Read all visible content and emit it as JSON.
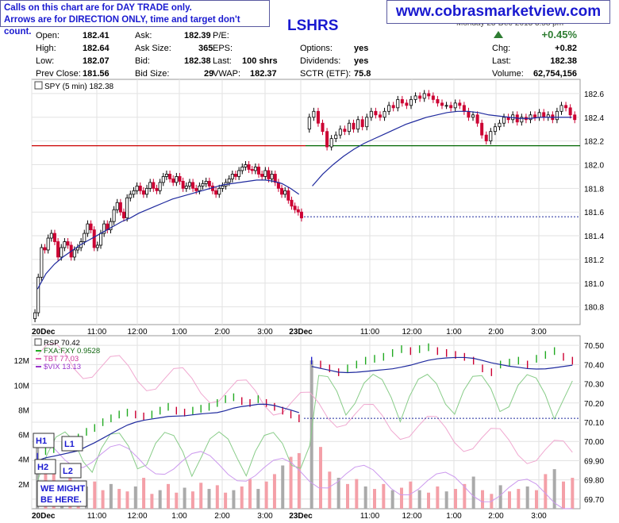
{
  "annotation_box": {
    "line1": "Calls on this chart are for DAY TRADE only.",
    "line2": "Arrows are for DIRECTION ONLY, time and target don't count."
  },
  "website": "www.cobrasmarketview.com",
  "date_line": "Monday 23-Dec-2013 3:58 pm",
  "quote": {
    "symbol": "LSHRS",
    "open_label": "Open:",
    "open": "182.41",
    "high_label": "High:",
    "high": "182.64",
    "low_label": "Low:",
    "low": "182.07",
    "prev_close_label": "Prev Close:",
    "prev_close": "181.56",
    "ask_label": "Ask:",
    "ask": "182.39",
    "ask_size_label": "Ask Size:",
    "ask_size": "365",
    "bid_label": "Bid:",
    "bid": "182.38",
    "bid_size_label": "Bid Size:",
    "bid_size": "29",
    "pe_label": "P/E:",
    "pe": "",
    "eps_label": "EPS:",
    "eps": "",
    "last_label": "Last:",
    "last_mid": "100 shrs",
    "vwap_label": "VWAP:",
    "vwap": "182.37",
    "options_label": "Options:",
    "options": "yes",
    "dividends_label": "Dividends:",
    "dividends": "yes",
    "sctr_label": "SCTR (ETF):",
    "sctr": "75.8",
    "change_pct": "+0.45%",
    "chg_label": "Chg:",
    "chg": "+0.82",
    "last_right": "182.38",
    "volume_label": "Volume:",
    "volume": "62,754,156"
  },
  "colors": {
    "up": "#000000",
    "down": "#cc0033",
    "ma": "#1f2a9e",
    "hline_red": "#cc0000",
    "hline_green": "#006600",
    "rsp_up": "#22aa22",
    "rsp_down": "#cc0033",
    "rsp_flat": "#2222cc",
    "fxa": "#88cc88",
    "tbt": "#f0a8d0",
    "vix": "#cc99ee",
    "vol_down": "#f4a0a8",
    "vol_up": "#aaaaaa",
    "note_text": "#1a1ad0",
    "arrow_green": "#2e7d32"
  },
  "chart_data": [
    {
      "type": "candlestick",
      "title": "SPY (5 min) 182.38",
      "ylim": [
        180.65,
        182.72
      ],
      "y_ticks": [
        "180.8",
        "181.0",
        "181.2",
        "181.4",
        "181.6",
        "181.8",
        "182.0",
        "182.2",
        "182.4",
        "182.6"
      ],
      "x_ticks": [
        "20Dec",
        "11:00",
        "12:00",
        "1:00",
        "2:00",
        "3:00",
        "23Dec",
        "11:00",
        "12:00",
        "1:00",
        "2:00",
        "3:00"
      ],
      "day1_close": [
        180.75,
        181.05,
        181.3,
        181.28,
        181.38,
        181.42,
        181.35,
        181.22,
        181.3,
        181.35,
        181.32,
        181.22,
        181.28,
        181.3,
        181.35,
        181.42,
        181.5,
        181.45,
        181.3,
        181.32,
        181.42,
        181.5,
        181.45,
        181.52,
        181.62,
        181.68,
        181.6,
        181.55,
        181.72,
        181.75,
        181.78,
        181.82,
        181.78,
        181.75,
        181.8,
        181.85,
        181.8,
        181.78,
        181.85,
        181.9,
        181.92,
        181.88,
        181.85,
        181.9,
        181.86,
        181.8,
        181.82,
        181.85,
        181.8,
        181.78,
        181.82,
        181.84,
        181.86,
        181.82,
        181.78,
        181.75,
        181.8,
        181.82,
        181.85,
        181.88,
        181.92,
        181.9,
        181.95,
        181.98,
        182.0,
        181.96,
        181.95,
        181.98,
        181.92,
        181.9,
        181.95,
        181.88,
        181.92,
        181.85,
        181.8,
        181.75,
        181.78,
        181.7,
        181.65,
        181.62,
        181.6,
        181.55
      ],
      "day2_close": [
        182.4,
        182.45,
        182.35,
        182.28,
        182.15,
        182.22,
        182.25,
        182.3,
        182.28,
        182.35,
        182.3,
        182.38,
        182.32,
        182.4,
        182.45,
        182.42,
        182.4,
        182.45,
        182.5,
        182.48,
        182.55,
        182.52,
        182.5,
        182.55,
        182.58,
        182.56,
        182.6,
        182.58,
        182.55,
        182.52,
        182.5,
        182.5,
        182.48,
        182.52,
        182.5,
        182.45,
        182.4,
        182.42,
        182.35,
        182.25,
        182.2,
        182.28,
        182.32,
        182.35,
        182.4,
        182.38,
        182.42,
        182.36,
        182.4,
        182.38,
        182.42,
        182.4,
        182.44,
        182.4,
        182.42,
        182.38,
        182.45,
        182.5,
        182.48,
        182.42,
        182.38
      ],
      "ma_day1": [
        180.95,
        181.08,
        181.16,
        181.22,
        181.27,
        181.32,
        181.36,
        181.4,
        181.44,
        181.48,
        181.52,
        181.55,
        181.59,
        181.62,
        181.65,
        181.68,
        181.71,
        181.73,
        181.75,
        181.77,
        181.79,
        181.81,
        181.83,
        181.84,
        181.85,
        181.86,
        181.87,
        181.87,
        181.86,
        181.84,
        181.8,
        181.75
      ],
      "ma_day2": [
        181.82,
        181.92,
        182.0,
        182.07,
        182.13,
        182.18,
        182.22,
        182.26,
        182.3,
        182.34,
        182.37,
        182.4,
        182.42,
        182.44,
        182.45,
        182.45,
        182.44,
        182.42,
        182.41,
        182.4,
        182.39,
        182.39,
        182.4,
        182.4,
        182.4,
        182.4
      ],
      "prev_close_line": 181.56,
      "red_line": 182.16,
      "green_line": 182.16
    },
    {
      "type": "line+volume",
      "rsp_label": "RSP  70.42",
      "fxa_label": "FXA:FXY  0.9528",
      "tbt_label": "TBT  77.03",
      "vix_label": "$VIX  13.13",
      "ylim": [
        69.65,
        70.55
      ],
      "y_ticks": [
        "69.70",
        "69.80",
        "69.90",
        "70.00",
        "70.10",
        "70.20",
        "70.30",
        "70.40",
        "70.50"
      ],
      "vol_ticks": [
        "2M",
        "4M",
        "6M",
        "8M",
        "10M",
        "12M"
      ],
      "vol_ylim": [
        0,
        14
      ],
      "x_ticks": [
        "20Dec",
        "11:00",
        "12:00",
        "1:00",
        "2:00",
        "3:00",
        "23Dec",
        "11:00",
        "12:00",
        "1:00",
        "2:00",
        "3:00"
      ],
      "rsp_day1": [
        69.92,
        69.95,
        69.96,
        69.98,
        70.0,
        70.02,
        70.05,
        70.07,
        70.1,
        70.12,
        70.14,
        70.15,
        70.14,
        70.13,
        70.14,
        70.16,
        70.18,
        70.16,
        70.15,
        70.16,
        70.17,
        70.18,
        70.2,
        70.22,
        70.23,
        70.21,
        70.2,
        70.22,
        70.2,
        70.18,
        70.16,
        70.14,
        70.12
      ],
      "rsp_day2": [
        70.42,
        70.4,
        70.38,
        70.36,
        70.38,
        70.4,
        70.42,
        70.43,
        70.44,
        70.46,
        70.48,
        70.47,
        70.48,
        70.49,
        70.47,
        70.46,
        70.45,
        70.44,
        70.42,
        70.38,
        70.36,
        70.4,
        70.41,
        70.42,
        70.4,
        70.43,
        70.45,
        70.47,
        70.44,
        70.42
      ],
      "prev_close_line": 70.12,
      "volume_day1": [
        6,
        4,
        3,
        2,
        2.5,
        2,
        1.8,
        2.2,
        1.5,
        2,
        1.6,
        1.4,
        1.8,
        2.5,
        1.2,
        1.5,
        2,
        1.3,
        1.7,
        1.4,
        2.1,
        1.6,
        1.9,
        1.3,
        1.5,
        1.8,
        2.4,
        1.6,
        2.2,
        2.8,
        3.5,
        4.2,
        4.5
      ],
      "volume_day2": [
        12,
        5,
        3,
        2.5,
        2,
        2.4,
        1.8,
        1.6,
        2,
        1.5,
        1.7,
        2.2,
        1.5,
        1.3,
        1.8,
        1.4,
        1.6,
        2,
        2.6,
        1.5,
        1.2,
        1.9,
        1.4,
        1.6,
        1.8,
        1.5,
        2.8,
        3.2,
        2.2,
        2.5
      ]
    }
  ],
  "labels": {
    "h1": "H1",
    "l1": "L1",
    "h2": "H2",
    "l2": "L2",
    "we_might_1": "WE MIGHT",
    "we_might_2": "BE HERE."
  }
}
